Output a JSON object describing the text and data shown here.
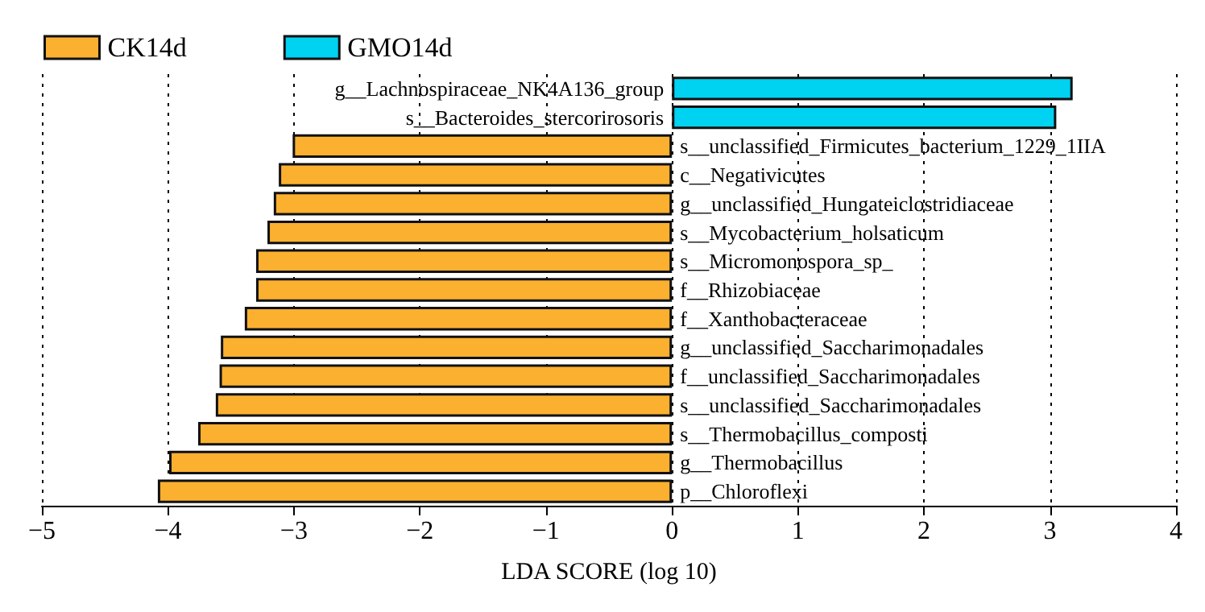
{
  "chart_data": {
    "type": "bar",
    "orientation": "horizontal",
    "xlabel": "LDA SCORE (log 10)",
    "categories": [
      "g__Lachnospiraceae_NK4A136_group",
      "s__Bacteroides_stercorirosoris",
      "s__unclassified_Firmicutes_bacterium_1229_1IIA",
      "c__Negativicutes",
      "g__unclassified_Hungateiclostridiaceae",
      "s__Mycobacterium_holsaticum",
      "s__Micromonospora_sp_",
      "f__Rhizobiaceae",
      "f__Xanthobacteraceae",
      "g__unclassified_Saccharimonadales",
      "f__unclassified_Saccharimonadales",
      "s__unclassified_Saccharimonadales",
      "s__Thermobacillus_composti",
      "g__Thermobacillus",
      "p__Chloroflexi"
    ],
    "series": [
      {
        "name": "CK14d",
        "color": "#fbb030",
        "values": [
          null,
          null,
          -3.01,
          -3.12,
          -3.16,
          -3.21,
          -3.3,
          -3.3,
          -3.39,
          -3.58,
          -3.59,
          -3.62,
          -3.76,
          -3.99,
          -4.08
        ]
      },
      {
        "name": "GMO14d",
        "color": "#00d2f2",
        "values": [
          3.18,
          3.05,
          null,
          null,
          null,
          null,
          null,
          null,
          null,
          null,
          null,
          null,
          null,
          null,
          null
        ]
      }
    ],
    "xlim": [
      -5,
      4
    ],
    "xticks": [
      -5,
      -4,
      -3,
      -2,
      -1,
      0,
      1,
      2,
      3,
      4
    ],
    "grid": "x",
    "legend": "top left"
  }
}
